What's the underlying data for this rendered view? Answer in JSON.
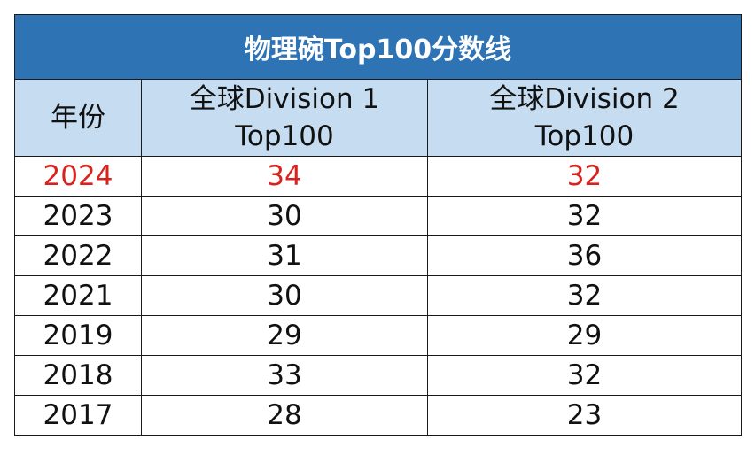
{
  "table": {
    "title": "物理碗Top100分数线",
    "headers": {
      "year": "年份",
      "division1_line1": "全球Division 1",
      "division1_line2": "Top100",
      "division2_line1": "全球Division 2",
      "division2_line2": "Top100"
    },
    "highlight_color": "#d9211e",
    "title_bg_color": "#2e74b5",
    "header_bg_color": "#c5dcf1",
    "rows": [
      {
        "year": "2024",
        "division1": "34",
        "division2": "32",
        "highlight": true
      },
      {
        "year": "2023",
        "division1": "30",
        "division2": "32",
        "highlight": false
      },
      {
        "year": "2022",
        "division1": "31",
        "division2": "36",
        "highlight": false
      },
      {
        "year": "2021",
        "division1": "30",
        "division2": "32",
        "highlight": false
      },
      {
        "year": "2019",
        "division1": "29",
        "division2": "29",
        "highlight": false
      },
      {
        "year": "2018",
        "division1": "33",
        "division2": "32",
        "highlight": false
      },
      {
        "year": "2017",
        "division1": "28",
        "division2": "23",
        "highlight": false
      }
    ]
  }
}
